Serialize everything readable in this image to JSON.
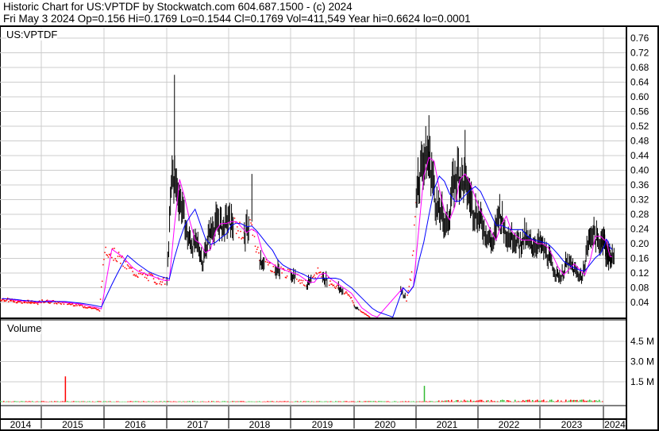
{
  "header": {
    "title": "Historic Chart for US:VPTDF by Stockwatch.com 604.687.1500 - (c) 2024",
    "quote": "Fri May  3 2024   Op=0.156  Hi=0.1769  Lo=0.1544  Cl=0.1769  Vol=411,549  Year hi=0.6624  lo=0.0001"
  },
  "chart_data": [
    {
      "type": "line",
      "title": "US:VPTDF",
      "ylim": [
        0,
        0.78
      ],
      "yticks": [
        "0.04",
        "0.08",
        "0.12",
        "0.16",
        "0.20",
        "0.24",
        "0.28",
        "0.32",
        "0.36",
        "0.40",
        "0.44",
        "0.48",
        "0.52",
        "0.56",
        "0.60",
        "0.64",
        "0.68",
        "0.72",
        "0.76"
      ],
      "x_labels": [
        "2014",
        "2015",
        "2016",
        "2017",
        "2018",
        "2019",
        "2020",
        "2021",
        "2022",
        "2023",
        "2024"
      ],
      "series_colors": {
        "up_bar": "#000000",
        "down_dot": "#ff0000",
        "ma_short": "#ff00ff",
        "ma_long": "#0000ff"
      },
      "monthly_close": [
        0.05,
        0.05,
        0.048,
        0.047,
        0.045,
        0.045,
        0.043,
        0.044,
        0.045,
        0.042,
        0.04,
        0.04,
        0.045,
        0.044,
        0.043,
        0.04,
        0.04,
        0.038,
        0.036,
        0.035,
        0.03,
        0.028,
        0.025,
        0.02,
        0.19,
        0.18,
        0.17,
        0.16,
        0.14,
        0.13,
        0.12,
        0.12,
        0.11,
        0.11,
        0.1,
        0.1,
        0.1,
        0.4,
        0.35,
        0.3,
        0.22,
        0.2,
        0.2,
        0.15,
        0.22,
        0.25,
        0.26,
        0.25,
        0.27,
        0.25,
        0.24,
        0.22,
        0.26,
        0.2,
        0.16,
        0.15,
        0.14,
        0.13,
        0.13,
        0.12,
        0.12,
        0.11,
        0.1,
        0.09,
        0.1,
        0.13,
        0.11,
        0.1,
        0.09,
        0.08,
        0.07,
        0.06,
        0.03,
        0.02,
        0.01,
        0.0001,
        null,
        null,
        null,
        null,
        null,
        0.08,
        0.05,
        0.12,
        0.35,
        0.42,
        0.45,
        0.4,
        0.3,
        0.28,
        0.25,
        0.35,
        0.4,
        0.38,
        0.35,
        0.3,
        0.28,
        0.25,
        0.22,
        0.2,
        0.3,
        0.25,
        0.22,
        0.22,
        0.2,
        0.22,
        0.2,
        0.2,
        0.2,
        0.18,
        0.15,
        0.12,
        0.11,
        0.15,
        0.14,
        0.12,
        0.11,
        0.2,
        0.24,
        0.2,
        0.22,
        0.2,
        0.17,
        0.16,
        0.17
      ],
      "spikes_high": {
        "37": 0.66,
        "52": 0.39,
        "86": 0.55,
        "93": 0.51
      }
    },
    {
      "type": "bar",
      "title": "Volume",
      "ylim": [
        0,
        6
      ],
      "yticks": [
        "1.5 M",
        "3.0 M",
        "4.5 M"
      ],
      "up_color": "#33bb33",
      "down_color": "#ff0000",
      "spike_volume_millions": {
        "16": 1.9,
        "85": 1.2
      }
    }
  ]
}
